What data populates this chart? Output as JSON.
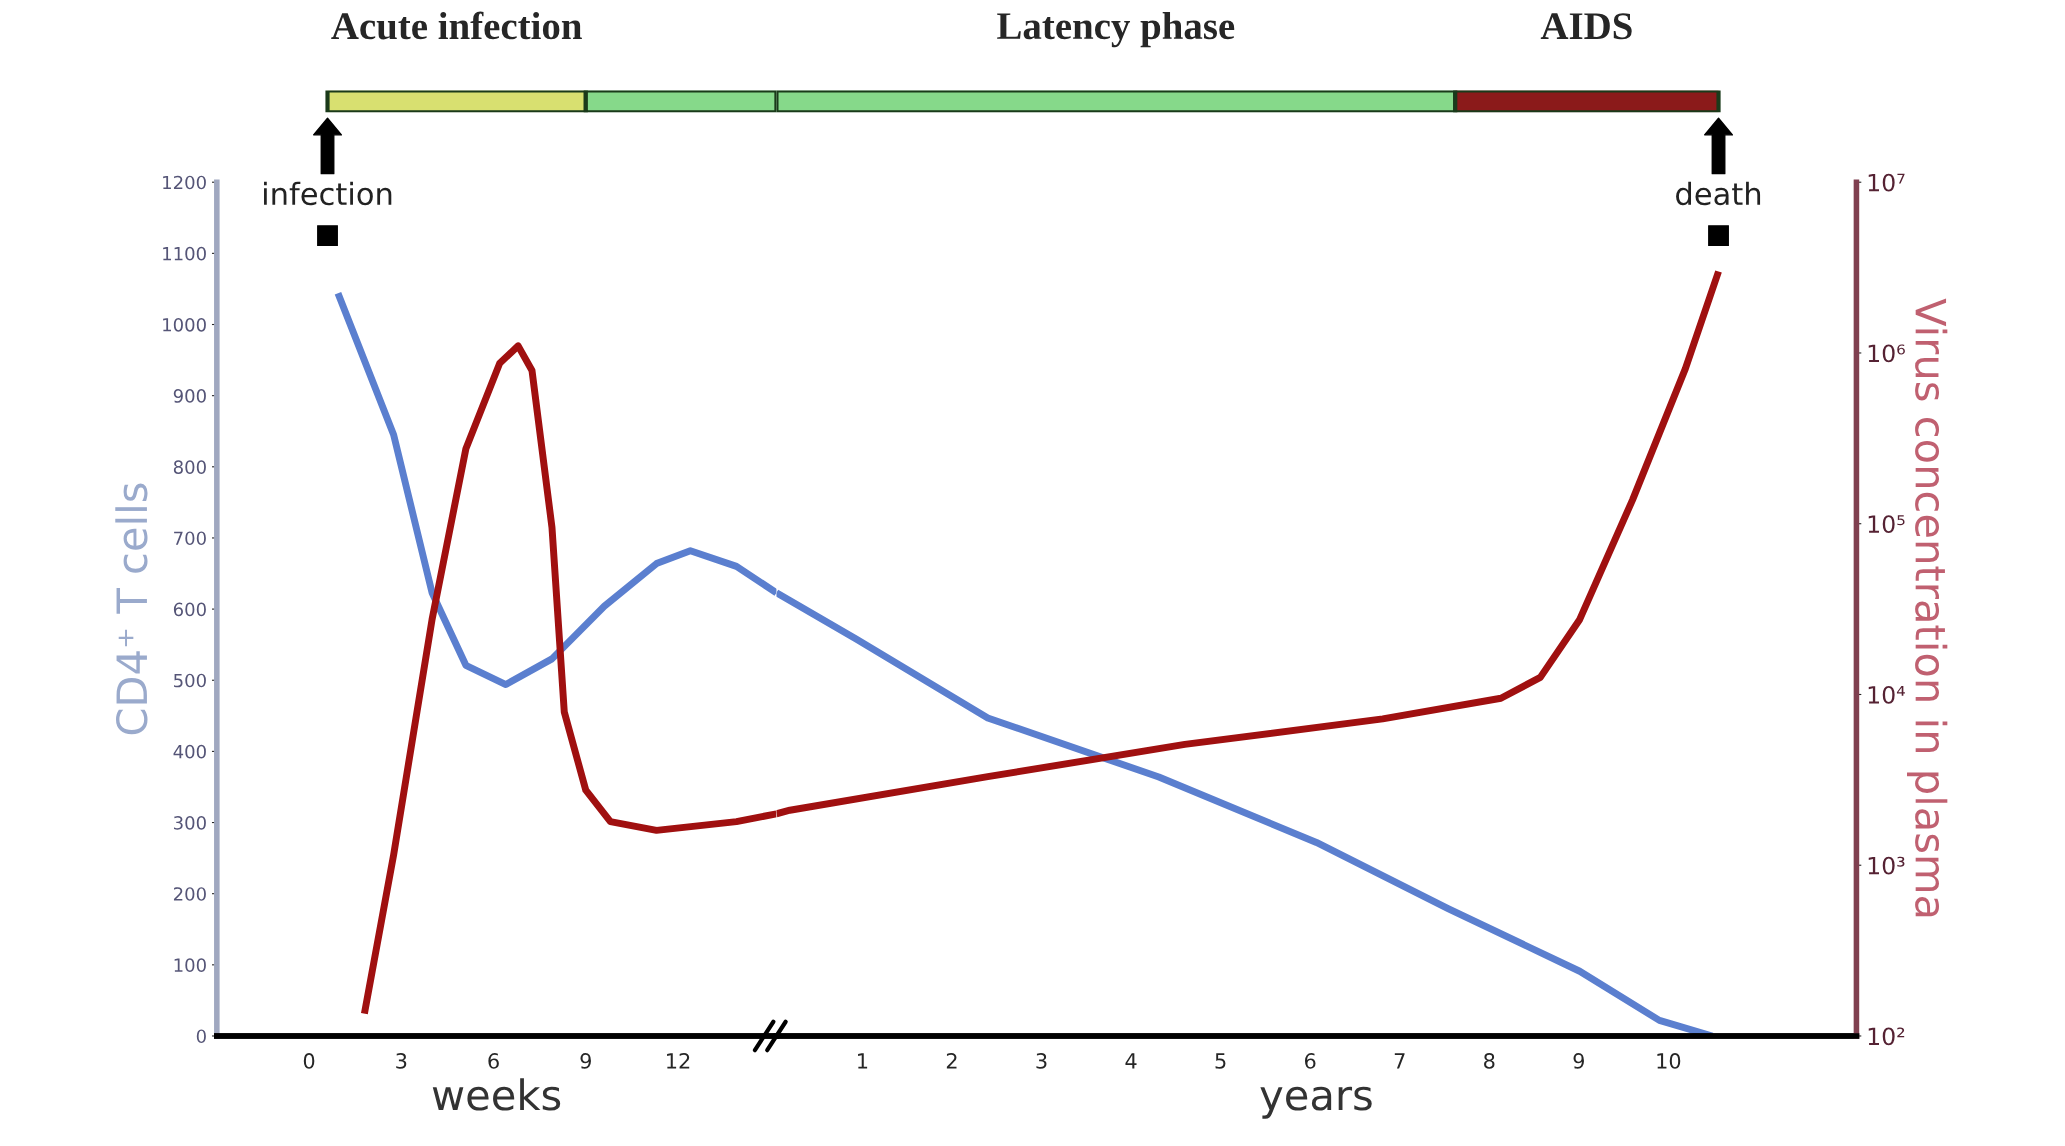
{
  "chart_data": [
    {
      "type": "line",
      "xlabel": "weeks",
      "ylabel": "CD4⁺ T cells",
      "x": [
        0.94,
        2.75,
        4.0,
        5.1,
        6.4,
        7.9,
        9.6,
        11.3,
        12.4,
        13.9,
        15.2
      ],
      "series": [
        {
          "color": "#5b7fcf",
          "axis": "y",
          "values": [
            1044,
            845,
            623,
            521,
            494,
            530,
            604,
            664,
            682,
            660,
            623
          ]
        },
        {
          "color": "#a01010",
          "axis": "y2",
          "x": [
            1.8,
            2.75,
            4.0,
            5.1,
            6.2,
            6.8,
            7.25,
            7.9,
            8.3,
            9.0,
            9.8,
            11.3,
            13.9,
            15.2
          ],
          "values": [
            135,
            1150,
            27500,
            275000,
            870000,
            1100000,
            790000,
            95000,
            7900,
            2750,
            1800,
            1600,
            1800,
            2000
          ]
        }
      ],
      "xlim": [
        -3,
        15.2
      ],
      "xticks": [
        0,
        3,
        6,
        9,
        12
      ],
      "ylim": [
        0,
        1200
      ],
      "yticks": [
        0,
        100,
        200,
        300,
        400,
        500,
        600,
        700,
        800,
        900,
        1000,
        1100,
        1200
      ],
      "y2lim": [
        100,
        10000000
      ],
      "log": "y2",
      "grid": false,
      "legend": false,
      "marker": "none",
      "line_style": "solid",
      "annotations": [
        {
          "text": "infection",
          "x": 0.6,
          "y": 1125
        },
        "Acute infection"
      ]
    },
    {
      "type": "line",
      "xlabel": "years",
      "y2label": "Virus concentration in plasma",
      "x": [
        0.04,
        0.93,
        2.4,
        4.31,
        6.07,
        7.54,
        9.01,
        9.9,
        10.49
      ],
      "series": [
        {
          "color": "#5b7fcf",
          "axis": "y",
          "values": [
            623,
            558,
            447,
            364,
            272,
            179,
            91,
            22,
            0
          ]
        },
        {
          "color": "#a01010",
          "axis": "y2",
          "x": [
            0.04,
            0.19,
            2.4,
            4.6,
            6.81,
            8.13,
            8.57,
            9.01,
            9.6,
            10.19,
            10.56
          ],
          "values": [
            2000,
            2100,
            3300,
            5100,
            7200,
            9500,
            12600,
            27500,
            138000,
            810000,
            3000000
          ]
        }
      ],
      "xlim": [
        0.04,
        12.1
      ],
      "xticks": [
        1,
        2,
        3,
        4,
        5,
        6,
        7,
        8,
        9,
        10
      ],
      "ylim": [
        0,
        1200
      ],
      "y2lim": [
        100,
        10000000
      ],
      "y2ticks": [
        {
          "value": 100,
          "label": "10²"
        },
        {
          "value": 1000,
          "label": "10³"
        },
        {
          "value": 10000,
          "label": "10⁴"
        },
        {
          "value": 100000,
          "label": "10⁵"
        },
        {
          "value": 1000000,
          "label": "10⁶"
        },
        {
          "value": 10000000,
          "label": "10⁷"
        }
      ],
      "log": "y2",
      "grid": false,
      "legend": false,
      "marker": "none",
      "line_style": "solid",
      "annotations": [
        {
          "text": "death",
          "x": 10.56,
          "y": 1125
        },
        "Latency phase",
        "AIDS"
      ]
    }
  ]
}
